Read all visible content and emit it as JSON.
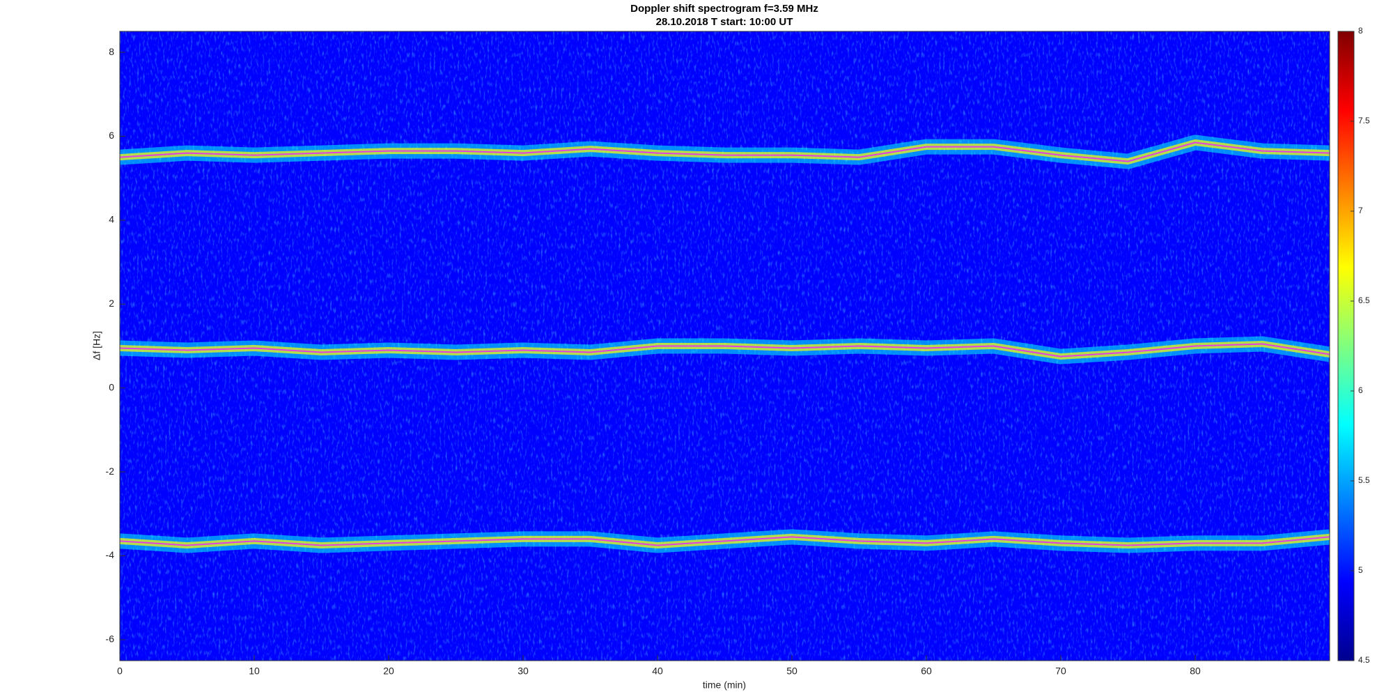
{
  "chart_data": {
    "type": "spectrogram",
    "title": "Doppler shift spectrogram f=3.59 MHz",
    "subtitle": "28.10.2018   T start: 10:00 UT",
    "x_label": "time (min)",
    "y_label": "Δf [Hz]",
    "xlim": [
      0,
      90
    ],
    "xticks": [
      0,
      10,
      20,
      30,
      40,
      50,
      60,
      70,
      80
    ],
    "ylim": [
      -6.5,
      8.5
    ],
    "yticks": [
      -6,
      -4,
      -2,
      0,
      2,
      4,
      6,
      8
    ],
    "colormap": "jet",
    "clim": [
      4.5,
      8
    ],
    "cticks": [
      4.5,
      5,
      5.5,
      6,
      6.5,
      7,
      7.5,
      8
    ],
    "x": [
      0,
      5,
      10,
      15,
      20,
      25,
      30,
      35,
      40,
      45,
      50,
      55,
      60,
      65,
      70,
      75,
      80,
      85,
      90
    ],
    "series": [
      {
        "color": "#e040e0",
        "values": [
          5.5,
          5.6,
          5.55,
          5.6,
          5.65,
          5.65,
          5.6,
          5.7,
          5.6,
          5.55,
          5.55,
          5.5,
          5.75,
          5.75,
          5.55,
          5.4,
          5.85,
          5.65,
          5.6
        ]
      },
      {
        "color": "#e040e0",
        "values": [
          0.95,
          0.9,
          0.95,
          0.85,
          0.9,
          0.85,
          0.9,
          0.85,
          1.0,
          1.0,
          0.95,
          1.0,
          0.95,
          1.0,
          0.75,
          0.85,
          1.0,
          1.05,
          0.8
        ]
      },
      {
        "color": "#e040e0",
        "values": [
          -3.65,
          -3.75,
          -3.65,
          -3.75,
          -3.7,
          -3.65,
          -3.6,
          -3.6,
          -3.75,
          -3.65,
          -3.55,
          -3.65,
          -3.7,
          -3.6,
          -3.7,
          -3.75,
          -3.7,
          -3.7,
          -3.55
        ]
      }
    ]
  }
}
